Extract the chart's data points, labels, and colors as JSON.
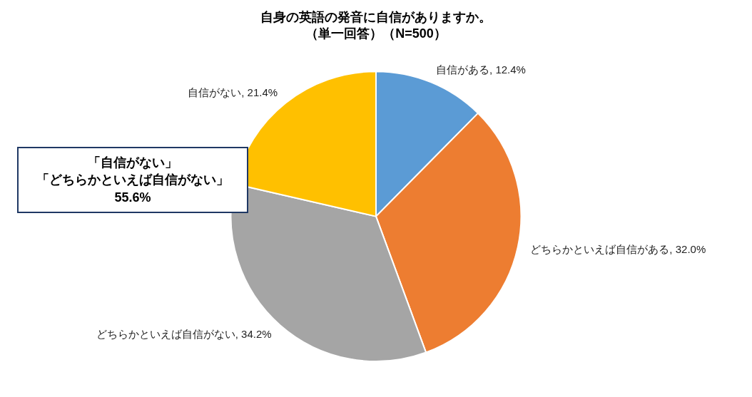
{
  "chart_data": {
    "type": "pie",
    "title": "自身の英語の発音に自信がありますか。",
    "subtitle": "（単一回答）（N=500）",
    "categories": [
      "自信がある",
      "どちらかといえば自信がある",
      "どちらかといえば自信がない",
      "自信がない"
    ],
    "values": [
      12.4,
      32.0,
      34.2,
      21.4
    ],
    "value_labels": [
      "12.4%",
      "32.0%",
      "34.2%",
      "21.4%"
    ],
    "colors": [
      "#5b9bd5",
      "#ed7d31",
      "#a5a5a5",
      "#ffc000"
    ],
    "legend": false,
    "annotations": [
      "「自信がない」",
      "「どちらかといえば自信がない」",
      "55.6%"
    ]
  }
}
